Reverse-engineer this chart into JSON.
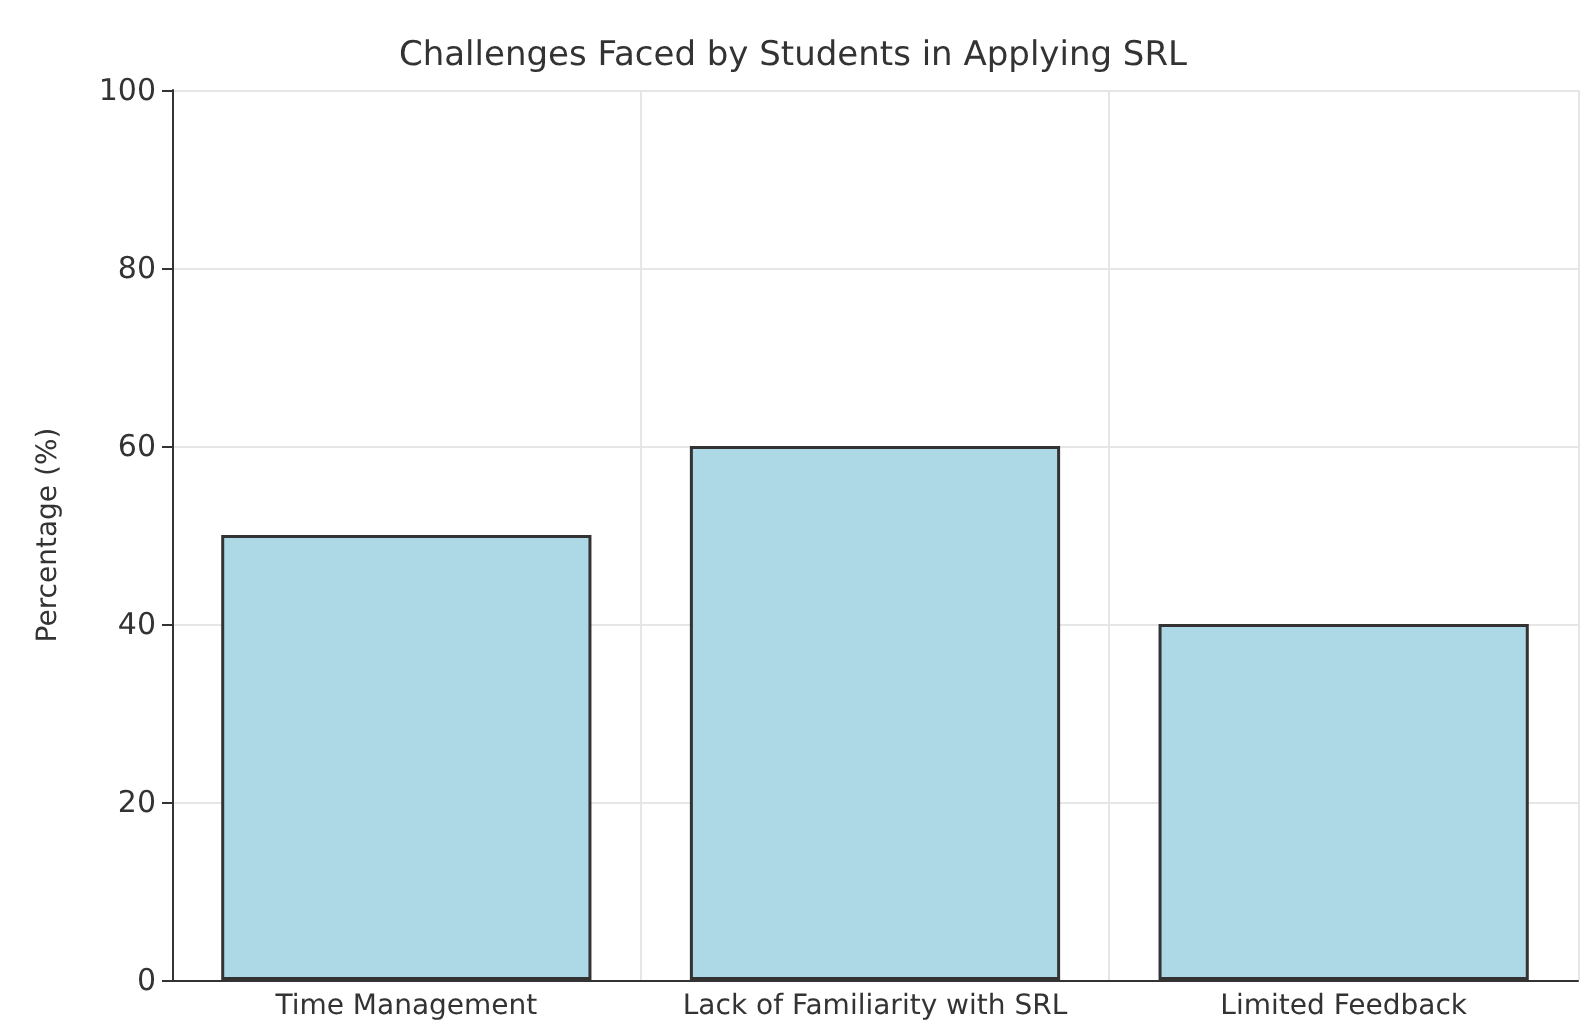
{
  "chart_data": {
    "type": "bar",
    "title": "Challenges Faced by Students in Applying SRL",
    "ylabel": "Percentage (%)",
    "categories": [
      "Time Management",
      "Lack of Familiarity with SRL",
      "Limited Feedback"
    ],
    "values": [
      50,
      60,
      40
    ],
    "color": "#add8e6",
    "ylim": [
      0,
      100
    ],
    "yticks": [
      0,
      20,
      40,
      60,
      80,
      100
    ],
    "grid": true
  }
}
